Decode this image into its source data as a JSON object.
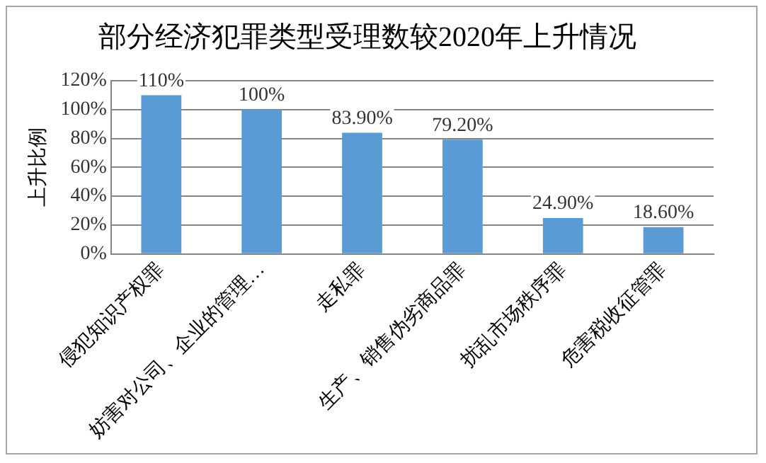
{
  "chart_data": {
    "type": "bar",
    "title": "部分经济犯罪类型受理数较2020年上升情况",
    "ylabel": "上升比例",
    "categories": [
      "侵犯知识产权罪",
      "妨害对公司、企业的管理…",
      "走私罪",
      "生产、销售伪劣商品罪",
      "扰乱市场秩序罪",
      "危害税收征管罪"
    ],
    "values": [
      110,
      100,
      83.9,
      79.2,
      24.9,
      18.6
    ],
    "value_labels": [
      "110%",
      "100%",
      "83.90%",
      "79.20%",
      "24.90%",
      "18.60%"
    ],
    "color": "#5b9bd5",
    "ylim": [
      0,
      120
    ],
    "yticks": [
      {
        "value": 0,
        "label": "0%"
      },
      {
        "value": 20,
        "label": "20%"
      },
      {
        "value": 40,
        "label": "40%"
      },
      {
        "value": 60,
        "label": "60%"
      },
      {
        "value": 80,
        "label": "80%"
      },
      {
        "value": 100,
        "label": "100%"
      },
      {
        "value": 120,
        "label": "120%"
      }
    ],
    "grid": "y",
    "legend": false
  }
}
